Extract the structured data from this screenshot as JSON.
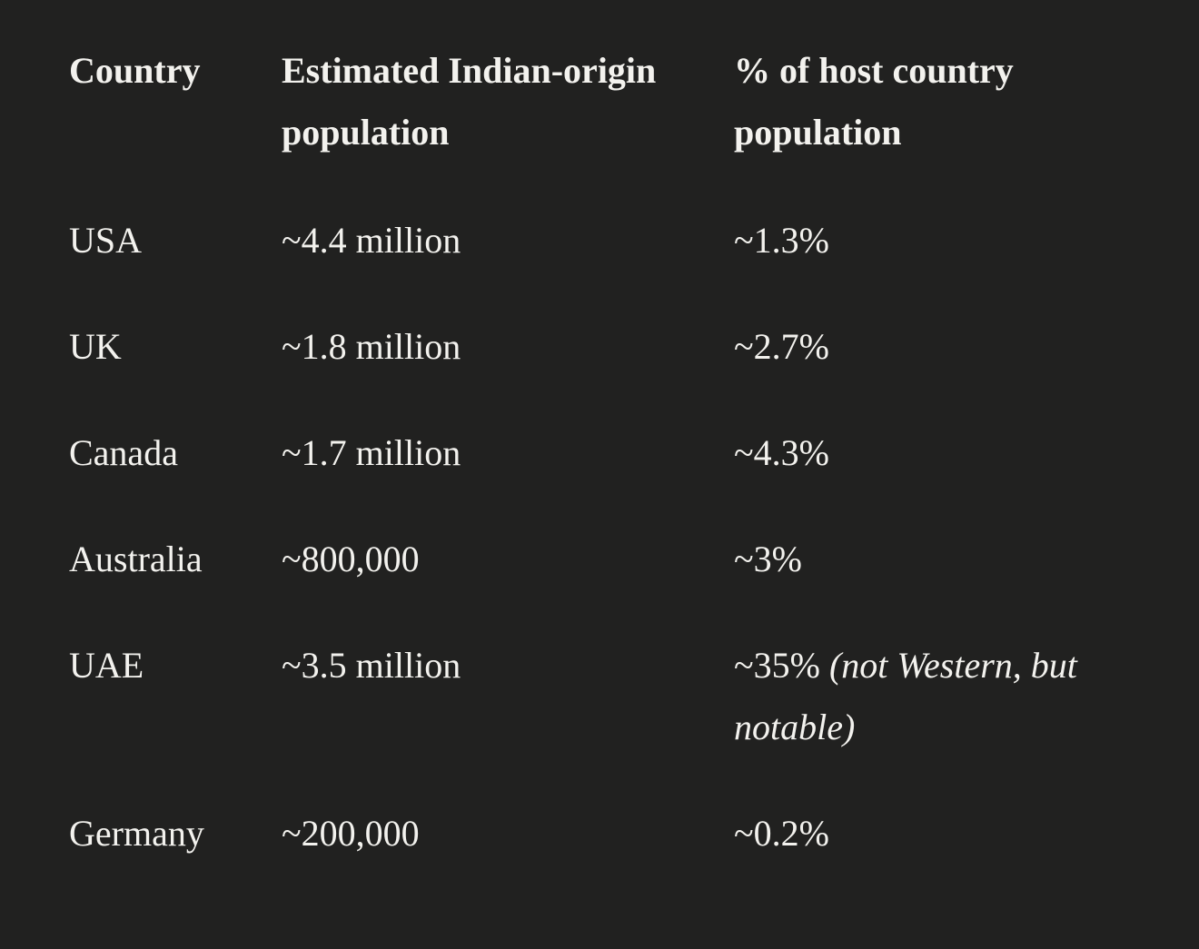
{
  "table": {
    "headers": [
      "Country",
      "Estimated Indian-origin population",
      "% of host country population"
    ],
    "rows": [
      [
        "USA",
        "~4.4 million",
        {
          "text": "~1.3%"
        }
      ],
      [
        "UK",
        "~1.8 million",
        {
          "text": "~2.7%"
        }
      ],
      [
        "Canada",
        "~1.7 million",
        {
          "text": "~4.3%"
        }
      ],
      [
        "Australia",
        "~800,000",
        {
          "text": "~3%"
        }
      ],
      [
        "UAE",
        "~3.5 million",
        {
          "text": "~35%",
          "note": "(not Western, but notable)"
        }
      ],
      [
        "Germany",
        "~200,000",
        {
          "text": "~0.2%"
        }
      ]
    ]
  }
}
